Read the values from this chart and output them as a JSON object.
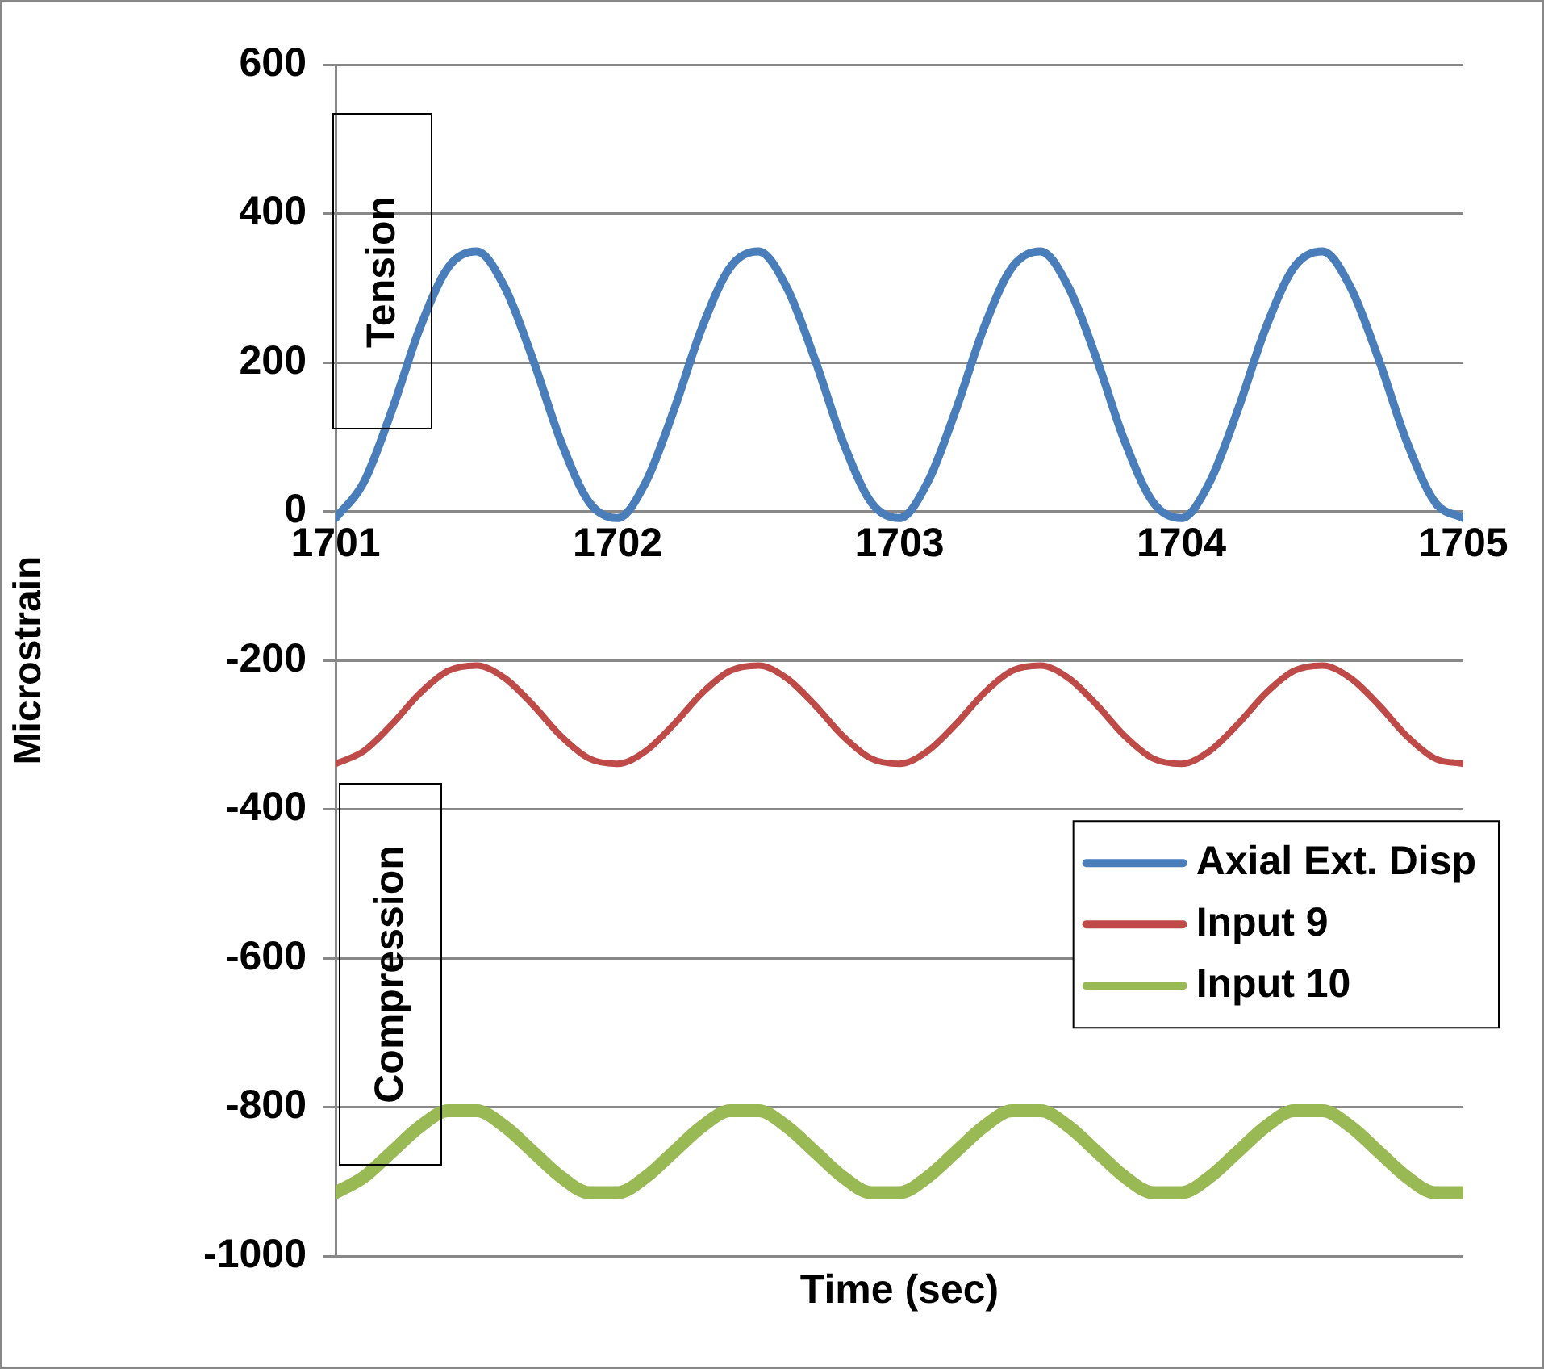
{
  "chart_data": {
    "type": "line",
    "xlabel": "Time (sec)",
    "ylabel": "Microstrain",
    "x": [
      1701,
      1701.1,
      1701.2,
      1701.3,
      1701.4,
      1701.5,
      1701.6,
      1701.7,
      1701.8,
      1701.9,
      1702,
      1702.1,
      1702.2,
      1702.3,
      1702.4,
      1702.5,
      1702.6,
      1702.7,
      1702.8,
      1702.9,
      1703,
      1703.1,
      1703.2,
      1703.3,
      1703.4,
      1703.5,
      1703.6,
      1703.7,
      1703.8,
      1703.9,
      1704,
      1704.1,
      1704.2,
      1704.3,
      1704.4,
      1704.5,
      1704.6,
      1704.7,
      1704.8,
      1704.9,
      1705
    ],
    "series": [
      {
        "name": "Axial Ext. Disp",
        "color": "#4a7ebb",
        "values": [
          -9,
          39,
          136,
          247,
          328,
          349,
          301,
          204,
          93,
          12,
          -9,
          39,
          136,
          247,
          328,
          349,
          301,
          204,
          93,
          12,
          -9,
          39,
          136,
          247,
          328,
          349,
          301,
          204,
          93,
          12,
          -9,
          39,
          136,
          247,
          328,
          349,
          301,
          204,
          93,
          12,
          -9
        ]
      },
      {
        "name": "Input 9",
        "color": "#be4b48",
        "values": [
          -339,
          -322,
          -286,
          -244,
          -214,
          -207,
          -224,
          -260,
          -302,
          -332,
          -339,
          -322,
          -286,
          -244,
          -214,
          -207,
          -224,
          -260,
          -302,
          -332,
          -339,
          -322,
          -286,
          -244,
          -214,
          -207,
          -224,
          -260,
          -302,
          -332,
          -339,
          -322,
          -286,
          -244,
          -214,
          -207,
          -224,
          -260,
          -302,
          -332,
          -339
        ]
      },
      {
        "name": "Input 10",
        "color": "#98b954",
        "values": [
          -915,
          -894,
          -860,
          -826,
          -805,
          -805,
          -826,
          -860,
          -894,
          -915,
          -915,
          -894,
          -860,
          -826,
          -805,
          -805,
          -826,
          -860,
          -894,
          -915,
          -915,
          -894,
          -860,
          -826,
          -805,
          -805,
          -826,
          -860,
          -894,
          -915,
          -915,
          -894,
          -860,
          -826,
          -805,
          -805,
          -826,
          -860,
          -894,
          -915,
          -915
        ]
      }
    ],
    "xlim": [
      1701,
      1705
    ],
    "xticks": [
      1701,
      1702,
      1703,
      1704,
      1705
    ],
    "ylim": [
      -1000,
      600
    ],
    "yticks": [
      -1000,
      -800,
      -600,
      -400,
      -200,
      0,
      200,
      400,
      600
    ],
    "grid": "y",
    "legend": "right",
    "marker": "none",
    "line_style": "solid",
    "annotations": [
      "Tension",
      "Compression"
    ]
  }
}
